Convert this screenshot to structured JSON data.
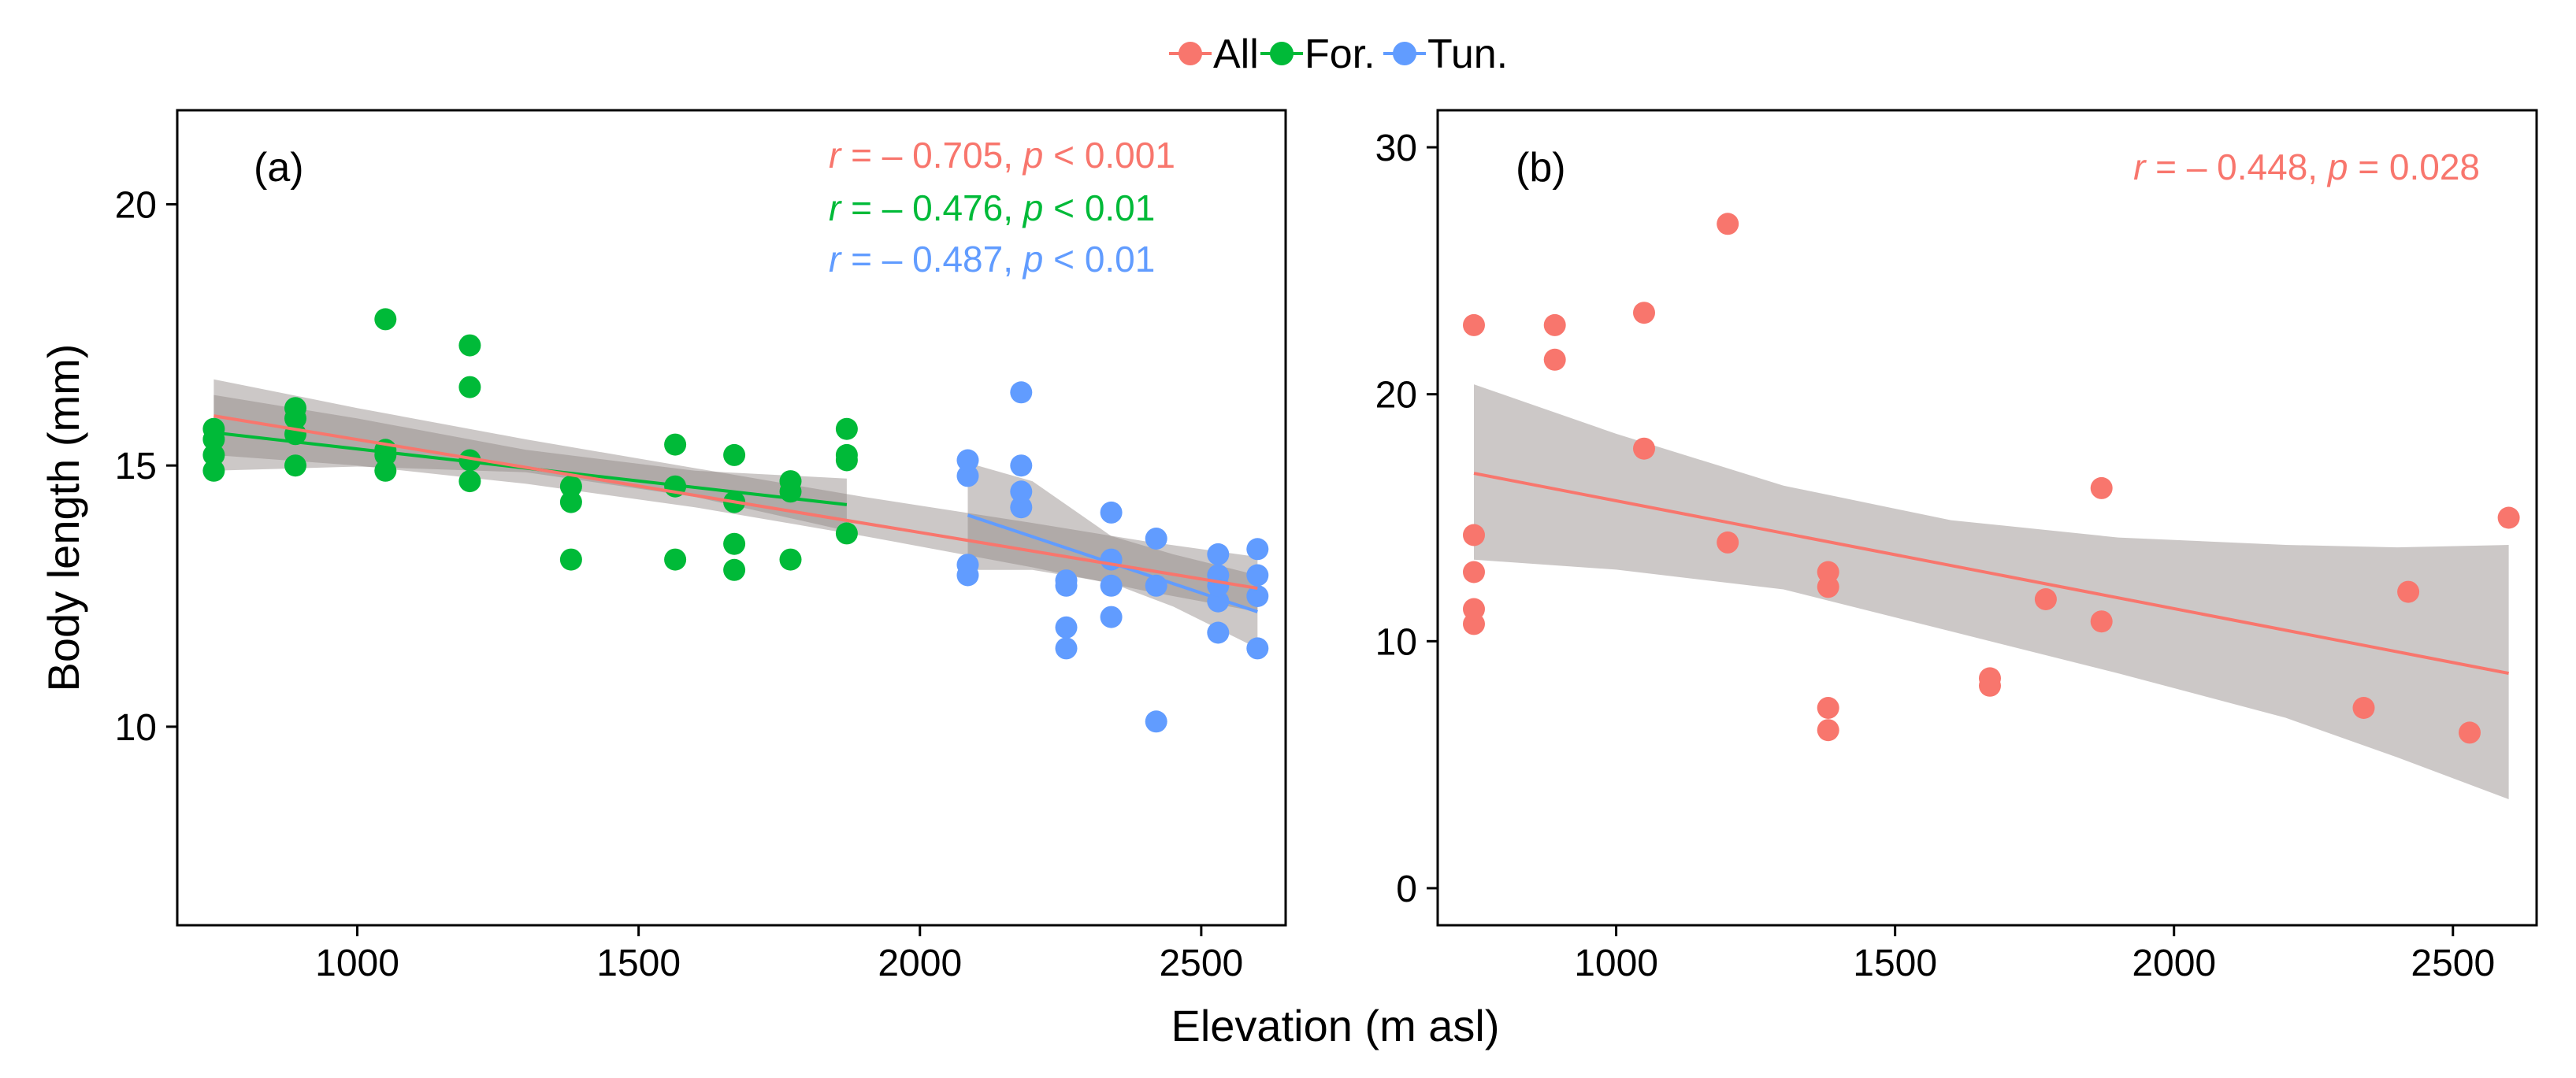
{
  "legend": {
    "items": [
      {
        "label": "All",
        "color": "#F8766D"
      },
      {
        "label": "For.",
        "color": "#00BA38"
      },
      {
        "label": "Tun.",
        "color": "#619CFF"
      }
    ]
  },
  "shared_xlabel": "Elevation (m asl)",
  "chart_data": [
    {
      "type": "scatter",
      "panel_label": "(a)",
      "ylabel": "Body length (mm)",
      "xlim": [
        680,
        2650
      ],
      "ylim": [
        6.2,
        21.8
      ],
      "xticks": [
        1000,
        1500,
        2000,
        2500
      ],
      "yticks": [
        10,
        15,
        20
      ],
      "annotations": [
        {
          "r_sym": "r",
          "r_val": " = – 0.705, ",
          "p_sym": "p",
          "p_val": " < 0.001",
          "color": "#F8766D"
        },
        {
          "r_sym": "r",
          "r_val": " = – 0.476, ",
          "p_sym": "p",
          "p_val": " < 0.01",
          "color": "#00BA38"
        },
        {
          "r_sym": "r",
          "r_val": " = – 0.487, ",
          "p_sym": "p",
          "p_val": " < 0.01",
          "color": "#619CFF"
        }
      ],
      "series": [
        {
          "name": "For.",
          "color": "#00BA38",
          "points": [
            [
              745,
              14.9
            ],
            [
              745,
              15.2
            ],
            [
              745,
              15.5
            ],
            [
              745,
              15.7
            ],
            [
              890,
              15.0
            ],
            [
              890,
              15.6
            ],
            [
              890,
              15.9
            ],
            [
              890,
              16.1
            ],
            [
              1050,
              14.9
            ],
            [
              1050,
              15.2
            ],
            [
              1050,
              15.3
            ],
            [
              1050,
              17.8
            ],
            [
              1200,
              14.7
            ],
            [
              1200,
              15.1
            ],
            [
              1200,
              16.5
            ],
            [
              1200,
              17.3
            ],
            [
              1380,
              13.2
            ],
            [
              1380,
              14.3
            ],
            [
              1380,
              14.6
            ],
            [
              1565,
              13.2
            ],
            [
              1565,
              14.6
            ],
            [
              1565,
              15.4
            ],
            [
              1670,
              13.0
            ],
            [
              1670,
              13.5
            ],
            [
              1670,
              14.3
            ],
            [
              1670,
              15.2
            ],
            [
              1770,
              13.2
            ],
            [
              1770,
              14.5
            ],
            [
              1770,
              14.7
            ],
            [
              1870,
              13.7
            ],
            [
              1870,
              15.1
            ],
            [
              1870,
              15.2
            ],
            [
              1870,
              15.7
            ]
          ],
          "fit": {
            "x0": 745,
            "y0": 15.63,
            "x1": 1870,
            "y1": 14.25
          },
          "band": {
            "x": [
              745,
              1000,
              1300,
              1600,
              1870
            ],
            "lo": [
              14.9,
              14.98,
              14.87,
              14.4,
              13.75
            ],
            "hi": [
              16.35,
              15.9,
              15.3,
              14.9,
              14.75
            ]
          }
        },
        {
          "name": "Tun.",
          "color": "#619CFF",
          "points": [
            [
              2085,
              12.9
            ],
            [
              2085,
              13.1
            ],
            [
              2085,
              14.8
            ],
            [
              2085,
              15.1
            ],
            [
              2180,
              14.2
            ],
            [
              2180,
              14.5
            ],
            [
              2180,
              15.0
            ],
            [
              2180,
              16.4
            ],
            [
              2260,
              11.5
            ],
            [
              2260,
              11.9
            ],
            [
              2260,
              12.7
            ],
            [
              2260,
              12.8
            ],
            [
              2340,
              12.1
            ],
            [
              2340,
              12.7
            ],
            [
              2340,
              13.2
            ],
            [
              2340,
              14.1
            ],
            [
              2420,
              10.1
            ],
            [
              2420,
              12.7
            ],
            [
              2420,
              13.6
            ],
            [
              2530,
              11.8
            ],
            [
              2530,
              12.4
            ],
            [
              2530,
              12.7
            ],
            [
              2530,
              12.9
            ],
            [
              2530,
              13.3
            ],
            [
              2600,
              11.5
            ],
            [
              2600,
              12.5
            ],
            [
              2600,
              12.9
            ],
            [
              2600,
              13.4
            ]
          ],
          "fit": {
            "x0": 2085,
            "y0": 14.05,
            "x1": 2600,
            "y1": 12.2
          },
          "band": {
            "x": [
              2085,
              2200,
              2340,
              2450,
              2600
            ],
            "lo": [
              13.0,
              13.0,
              12.75,
              12.3,
              11.5
            ],
            "hi": [
              15.05,
              14.7,
              13.65,
              13.3,
              12.9
            ]
          }
        }
      ],
      "fits": [
        {
          "name": "All",
          "color": "#F8766D",
          "fit": {
            "x0": 745,
            "y0": 15.95,
            "x1": 2600,
            "y1": 12.65
          },
          "band": {
            "x": [
              745,
              1000,
              1300,
              1600,
              1900,
              2200,
              2400,
              2600
            ],
            "lo": [
              15.2,
              15.0,
              14.65,
              14.2,
              13.65,
              13.05,
              12.6,
              12.2
            ],
            "hi": [
              16.65,
              16.1,
              15.5,
              14.95,
              14.4,
              13.9,
              13.55,
              13.25
            ]
          }
        }
      ]
    },
    {
      "type": "scatter",
      "panel_label": "(b)",
      "ylabel": "",
      "xlim": [
        680,
        2650
      ],
      "ylim": [
        -1.5,
        31.5
      ],
      "xticks": [
        1000,
        1500,
        2000,
        2500
      ],
      "yticks": [
        0,
        10,
        20,
        30
      ],
      "annotations": [
        {
          "r_sym": "r",
          "r_val": " = – 0.448, ",
          "p_sym": "p",
          "p_val": " = 0.028",
          "color": "#F8766D"
        }
      ],
      "series": [
        {
          "name": "All",
          "color": "#F8766D",
          "points": [
            [
              745,
              10.7
            ],
            [
              745,
              11.3
            ],
            [
              745,
              12.8
            ],
            [
              745,
              14.3
            ],
            [
              745,
              22.8
            ],
            [
              890,
              21.4
            ],
            [
              890,
              22.8
            ],
            [
              1050,
              17.8
            ],
            [
              1050,
              23.3
            ],
            [
              1200,
              14.0
            ],
            [
              1200,
              26.9
            ],
            [
              1380,
              6.4
            ],
            [
              1380,
              7.3
            ],
            [
              1380,
              12.2
            ],
            [
              1380,
              12.8
            ],
            [
              1670,
              8.2
            ],
            [
              1670,
              8.5
            ],
            [
              1770,
              11.7
            ],
            [
              1870,
              10.8
            ],
            [
              1870,
              16.2
            ],
            [
              2340,
              7.3
            ],
            [
              2420,
              12.0
            ],
            [
              2530,
              6.3
            ],
            [
              2600,
              15.0
            ]
          ],
          "fit": {
            "x0": 745,
            "y0": 16.8,
            "x1": 2600,
            "y1": 8.7
          },
          "band": {
            "x": [
              745,
              1000,
              1300,
              1600,
              1900,
              2200,
              2400,
              2600
            ],
            "lo": [
              13.3,
              12.9,
              12.1,
              10.4,
              8.7,
              6.9,
              5.3,
              3.6
            ],
            "hi": [
              20.4,
              18.4,
              16.3,
              14.9,
              14.2,
              13.9,
              13.8,
              13.9
            ]
          }
        }
      ]
    }
  ]
}
